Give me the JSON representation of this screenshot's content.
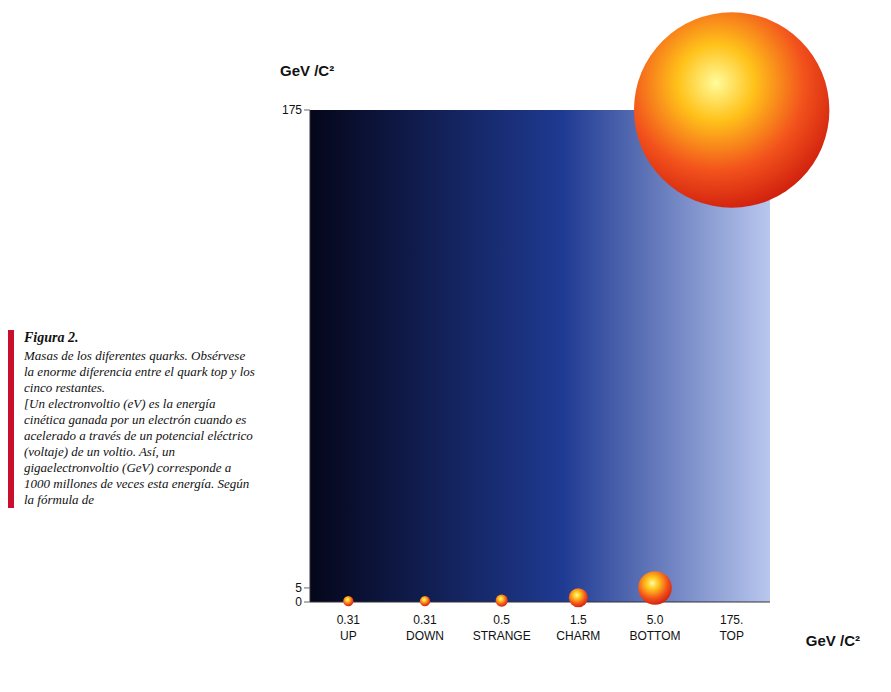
{
  "chart_data": {
    "type": "bubble",
    "categories": [
      "UP",
      "DOWN",
      "STRANGE",
      "CHARM",
      "BOTTOM",
      "TOP"
    ],
    "values": [
      0.31,
      0.31,
      0.5,
      1.5,
      5.0,
      175
    ],
    "value_labels": [
      "0.31",
      "0.31",
      "0.5",
      "1.5",
      "5.0",
      "175."
    ],
    "data_labels": true,
    "y_label": "GeV /C²",
    "x_label": "GeV /C²",
    "ylim": [
      0,
      175
    ],
    "yticks": [
      0,
      5,
      175
    ],
    "grid": false,
    "caption_title": "Figura 2.",
    "caption": "Masas de los diferentes quarks. Obsérvese la enorme diferencia entre el quark top y los cinco restantes.",
    "caption_note": "[Un electronvoltio (eV) es la energía cinética ganada por un electrón cuando es acelerado a través de un potencial eléctrico (voltaje) de un voltio. Así, un gigaelectronvoltio (GeV) corresponde a 1000 millones de veces esta energía. Según la fórmula de"
  }
}
